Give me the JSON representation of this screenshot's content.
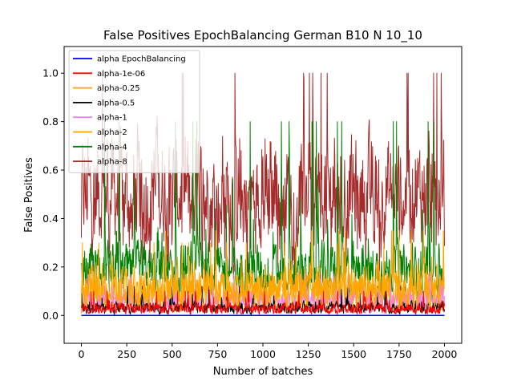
{
  "chart_data": {
    "type": "line",
    "title": "False Positives EpochBalancing German B10 N 10_10",
    "xlabel": "Number of batches",
    "ylabel": "False Positives",
    "xlim": [
      -95,
      2095
    ],
    "ylim": [
      -0.115,
      1.11
    ],
    "xticks": [
      0,
      250,
      500,
      750,
      1000,
      1250,
      1500,
      1750,
      2000
    ],
    "xtick_labels": [
      "0",
      "250",
      "500",
      "750",
      "1000",
      "1250",
      "1500",
      "1750",
      "2000"
    ],
    "yticks": [
      0.0,
      0.2,
      0.4,
      0.6,
      0.8,
      1.0
    ],
    "ytick_labels": [
      "0.0",
      "0.2",
      "0.4",
      "0.6",
      "0.8",
      "1.0"
    ],
    "grid": false,
    "legend_position": "top-left",
    "x_range": [
      0,
      2000
    ],
    "series": [
      {
        "name": "alpha EpochBalancing",
        "color": "#0000ff",
        "typical_low": 0.0,
        "typical_high": 0.0,
        "peak": 0.0
      },
      {
        "name": "alpha-1e-06",
        "color": "#ff0000",
        "typical_low": 0.0,
        "typical_high": 0.06,
        "peak": 0.1
      },
      {
        "name": "alpha-0.25",
        "color": "#ffa500",
        "typical_low": 0.0,
        "typical_high": 0.25,
        "peak": 0.35
      },
      {
        "name": "alpha-0.5",
        "color": "#000000",
        "typical_low": 0.0,
        "typical_high": 0.07,
        "peak": 0.12
      },
      {
        "name": "alpha-1",
        "color": "#ee82ee",
        "typical_low": 0.0,
        "typical_high": 0.12,
        "peak": 0.17
      },
      {
        "name": "alpha-2",
        "color": "#ffa500",
        "typical_low": 0.0,
        "typical_high": 0.2,
        "peak": 0.3
      },
      {
        "name": "alpha-4",
        "color": "#008000",
        "typical_low": 0.05,
        "typical_high": 0.35,
        "peak": 0.8
      },
      {
        "name": "alpha-8",
        "color": "#a52a2a",
        "typical_low": 0.25,
        "typical_high": 0.85,
        "peak": 1.0
      }
    ]
  }
}
